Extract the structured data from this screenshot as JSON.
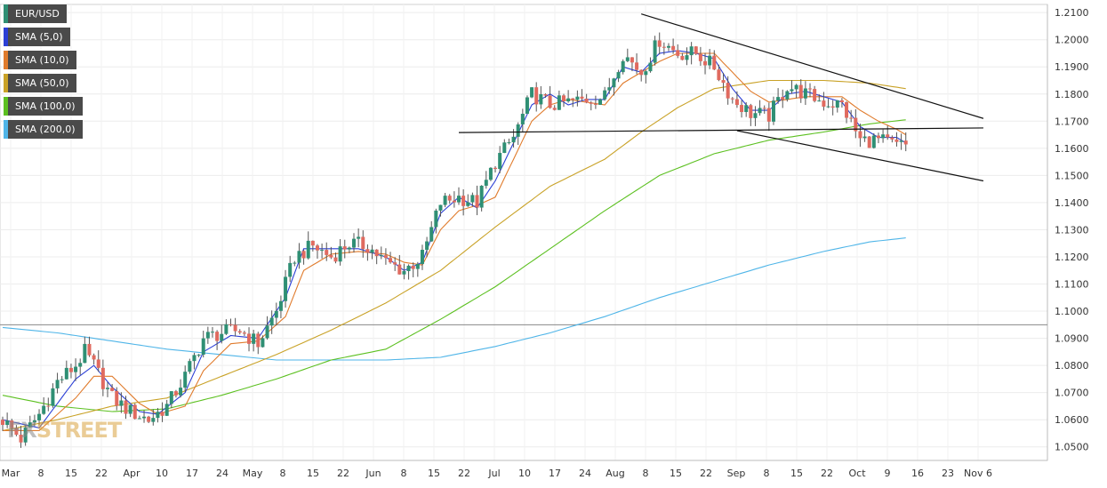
{
  "chart_data": {
    "type": "candlestick",
    "symbol": "EUR/USD",
    "x_labels": [
      "Mar",
      "8",
      "15",
      "22",
      "Apr",
      "10",
      "17",
      "24",
      "May",
      "8",
      "15",
      "22",
      "Jun",
      "8",
      "15",
      "22",
      "Jul",
      "10",
      "17",
      "24",
      "Aug",
      "8",
      "15",
      "22",
      "Sep",
      "8",
      "15",
      "22",
      "Oct",
      "9",
      "16",
      "23",
      "Nov 6"
    ],
    "y_ticks": [
      "1.0500",
      "1.0600",
      "1.0700",
      "1.0800",
      "1.0900",
      "1.1000",
      "1.1100",
      "1.1200",
      "1.1300",
      "1.1400",
      "1.1500",
      "1.1600",
      "1.1700",
      "1.1800",
      "1.1900",
      "1.2000",
      "1.2100"
    ],
    "ylim": [
      1.045,
      1.213
    ],
    "grid": true,
    "legend_placement": "top-left",
    "legend": [
      {
        "label": "EUR/USD",
        "color": "#2f8f74"
      },
      {
        "label": "SMA (5,0)",
        "color": "#2b3fd6"
      },
      {
        "label": "SMA (10,0)",
        "color": "#e07b2c"
      },
      {
        "label": "SMA (50,0)",
        "color": "#c9a227"
      },
      {
        "label": "SMA (100,0)",
        "color": "#5cc020"
      },
      {
        "label": "SMA (200,0)",
        "color": "#4fb5e8"
      }
    ],
    "candle_colors": {
      "up": "#2f8f74",
      "down": "#e06a5f"
    },
    "closes_anchor": [
      [
        0,
        1.06
      ],
      [
        4,
        1.053
      ],
      [
        8,
        1.062
      ],
      [
        12,
        1.074
      ],
      [
        16,
        1.08
      ],
      [
        18,
        1.085
      ],
      [
        20,
        1.08
      ],
      [
        24,
        1.068
      ],
      [
        28,
        1.063
      ],
      [
        32,
        1.06
      ],
      [
        36,
        1.065
      ],
      [
        40,
        1.076
      ],
      [
        44,
        1.09
      ],
      [
        48,
        1.092
      ],
      [
        52,
        1.093
      ],
      [
        56,
        1.088
      ],
      [
        60,
        1.1
      ],
      [
        64,
        1.12
      ],
      [
        68,
        1.124
      ],
      [
        72,
        1.12
      ],
      [
        76,
        1.125
      ],
      [
        80,
        1.124
      ],
      [
        84,
        1.118
      ],
      [
        88,
        1.115
      ],
      [
        92,
        1.12
      ],
      [
        96,
        1.14
      ],
      [
        100,
        1.142
      ],
      [
        104,
        1.14
      ],
      [
        108,
        1.155
      ],
      [
        112,
        1.164
      ],
      [
        116,
        1.18
      ],
      [
        120,
        1.176
      ],
      [
        124,
        1.177
      ],
      [
        128,
        1.178
      ],
      [
        132,
        1.179
      ],
      [
        136,
        1.195
      ],
      [
        140,
        1.188
      ],
      [
        144,
        1.2
      ],
      [
        148,
        1.195
      ],
      [
        152,
        1.195
      ],
      [
        156,
        1.19
      ],
      [
        160,
        1.178
      ],
      [
        164,
        1.173
      ],
      [
        168,
        1.172
      ],
      [
        172,
        1.183
      ],
      [
        176,
        1.18
      ],
      [
        180,
        1.177
      ],
      [
        184,
        1.176
      ],
      [
        188,
        1.163
      ],
      [
        192,
        1.163
      ],
      [
        196,
        1.161
      ],
      [
        198,
        1.161
      ]
    ],
    "sma_anchors": {
      "sma5": [
        [
          0,
          1.06
        ],
        [
          8,
          1.057
        ],
        [
          16,
          1.075
        ],
        [
          20,
          1.08
        ],
        [
          24,
          1.072
        ],
        [
          30,
          1.063
        ],
        [
          34,
          1.062
        ],
        [
          40,
          1.07
        ],
        [
          44,
          1.085
        ],
        [
          50,
          1.091
        ],
        [
          56,
          1.09
        ],
        [
          62,
          1.105
        ],
        [
          66,
          1.123
        ],
        [
          72,
          1.123
        ],
        [
          78,
          1.123
        ],
        [
          84,
          1.12
        ],
        [
          88,
          1.115
        ],
        [
          92,
          1.118
        ],
        [
          96,
          1.136
        ],
        [
          100,
          1.142
        ],
        [
          104,
          1.138
        ],
        [
          108,
          1.148
        ],
        [
          112,
          1.162
        ],
        [
          116,
          1.176
        ],
        [
          120,
          1.18
        ],
        [
          124,
          1.176
        ],
        [
          128,
          1.178
        ],
        [
          132,
          1.178
        ],
        [
          136,
          1.19
        ],
        [
          140,
          1.188
        ],
        [
          144,
          1.195
        ],
        [
          148,
          1.196
        ],
        [
          152,
          1.195
        ],
        [
          156,
          1.193
        ],
        [
          160,
          1.182
        ],
        [
          164,
          1.174
        ],
        [
          168,
          1.174
        ],
        [
          172,
          1.18
        ],
        [
          176,
          1.181
        ],
        [
          180,
          1.179
        ],
        [
          184,
          1.177
        ],
        [
          188,
          1.168
        ],
        [
          192,
          1.164
        ],
        [
          196,
          1.164
        ],
        [
          198,
          1.162
        ]
      ],
      "sma10": [
        [
          0,
          1.056
        ],
        [
          8,
          1.056
        ],
        [
          16,
          1.068
        ],
        [
          20,
          1.076
        ],
        [
          24,
          1.076
        ],
        [
          30,
          1.066
        ],
        [
          34,
          1.062
        ],
        [
          40,
          1.065
        ],
        [
          44,
          1.078
        ],
        [
          50,
          1.088
        ],
        [
          56,
          1.089
        ],
        [
          62,
          1.098
        ],
        [
          66,
          1.115
        ],
        [
          72,
          1.121
        ],
        [
          78,
          1.122
        ],
        [
          84,
          1.121
        ],
        [
          88,
          1.118
        ],
        [
          92,
          1.117
        ],
        [
          96,
          1.13
        ],
        [
          100,
          1.137
        ],
        [
          104,
          1.139
        ],
        [
          108,
          1.142
        ],
        [
          112,
          1.156
        ],
        [
          116,
          1.17
        ],
        [
          120,
          1.176
        ],
        [
          124,
          1.178
        ],
        [
          128,
          1.177
        ],
        [
          132,
          1.176
        ],
        [
          136,
          1.184
        ],
        [
          140,
          1.188
        ],
        [
          144,
          1.192
        ],
        [
          148,
          1.195
        ],
        [
          152,
          1.195
        ],
        [
          156,
          1.195
        ],
        [
          160,
          1.188
        ],
        [
          164,
          1.181
        ],
        [
          168,
          1.177
        ],
        [
          172,
          1.178
        ],
        [
          176,
          1.179
        ],
        [
          180,
          1.179
        ],
        [
          184,
          1.179
        ],
        [
          188,
          1.174
        ],
        [
          192,
          1.17
        ],
        [
          196,
          1.167
        ],
        [
          198,
          1.165
        ]
      ],
      "sma50": [
        [
          0,
          1.056
        ],
        [
          12,
          1.06
        ],
        [
          24,
          1.065
        ],
        [
          36,
          1.068
        ],
        [
          48,
          1.076
        ],
        [
          60,
          1.084
        ],
        [
          72,
          1.093
        ],
        [
          84,
          1.103
        ],
        [
          96,
          1.115
        ],
        [
          108,
          1.131
        ],
        [
          120,
          1.146
        ],
        [
          132,
          1.156
        ],
        [
          140,
          1.166
        ],
        [
          148,
          1.175
        ],
        [
          156,
          1.182
        ],
        [
          168,
          1.185
        ],
        [
          180,
          1.185
        ],
        [
          190,
          1.184
        ],
        [
          198,
          1.182
        ]
      ],
      "sma100": [
        [
          0,
          1.069
        ],
        [
          12,
          1.065
        ],
        [
          24,
          1.063
        ],
        [
          36,
          1.064
        ],
        [
          48,
          1.069
        ],
        [
          60,
          1.075
        ],
        [
          72,
          1.082
        ],
        [
          84,
          1.086
        ],
        [
          96,
          1.097
        ],
        [
          108,
          1.109
        ],
        [
          120,
          1.123
        ],
        [
          132,
          1.137
        ],
        [
          144,
          1.15
        ],
        [
          156,
          1.158
        ],
        [
          168,
          1.163
        ],
        [
          180,
          1.166
        ],
        [
          190,
          1.169
        ],
        [
          198,
          1.1705
        ]
      ],
      "sma200": [
        [
          0,
          1.094
        ],
        [
          12,
          1.092
        ],
        [
          24,
          1.089
        ],
        [
          36,
          1.086
        ],
        [
          48,
          1.084
        ],
        [
          60,
          1.082
        ],
        [
          72,
          1.082
        ],
        [
          84,
          1.082
        ],
        [
          96,
          1.083
        ],
        [
          108,
          1.087
        ],
        [
          120,
          1.092
        ],
        [
          132,
          1.098
        ],
        [
          144,
          1.105
        ],
        [
          156,
          1.111
        ],
        [
          168,
          1.117
        ],
        [
          180,
          1.122
        ],
        [
          190,
          1.1255
        ],
        [
          198,
          1.127
        ]
      ]
    },
    "trendlines": [
      {
        "name": "upper-channel",
        "from": [
          140,
          1.2095
        ],
        "to": [
          215,
          1.171
        ]
      },
      {
        "name": "lower-channel",
        "from": [
          161,
          1.1665
        ],
        "to": [
          215,
          1.148
        ]
      },
      {
        "name": "neckline",
        "from": [
          100,
          1.1658
        ],
        "to": [
          215,
          1.1675
        ]
      }
    ],
    "horizontal_line": 1.095
  },
  "logo": {
    "prefix": "FX",
    "suffix": "STREET"
  }
}
